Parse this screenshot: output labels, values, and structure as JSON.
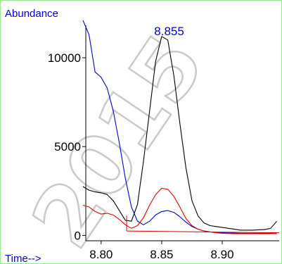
{
  "chart_data": {
    "type": "line",
    "title": "",
    "ylabel": "Abundance",
    "xlabel": "Time-->",
    "xlim": [
      8.785,
      8.947
    ],
    "ylim": [
      -300,
      12300
    ],
    "x_ticks": [
      8.8,
      8.85,
      8.9
    ],
    "x_tick_labels": [
      "8.80",
      "8.85",
      "8.90"
    ],
    "y_ticks": [
      0,
      5000,
      10000
    ],
    "y_tick_labels": [
      "0",
      "5000",
      "10000"
    ],
    "grid": false,
    "peak_annotation": {
      "text": "8.855",
      "x": 8.855
    },
    "watermark_text": "2015",
    "colors": {
      "frame": "#90ee90",
      "axis": "#000000",
      "blue": "#0000cc",
      "red": "#dd0000",
      "black": "#000000",
      "label": "#0000cc",
      "watermark": "#c9c9c9"
    },
    "series": [
      {
        "color": "#000000",
        "x": [
          8.785,
          8.79,
          8.795,
          8.8,
          8.805,
          8.81,
          8.815,
          8.82,
          8.825,
          8.83,
          8.835,
          8.84,
          8.845,
          8.85,
          8.855,
          8.86,
          8.865,
          8.87,
          8.875,
          8.88,
          8.885,
          8.89,
          8.895,
          8.9,
          8.905,
          8.91,
          8.915,
          8.92,
          8.925,
          8.93,
          8.935,
          8.94,
          8.945
        ],
        "y": [
          2750,
          2550,
          2450,
          2400,
          2300,
          1950,
          1400,
          850,
          800,
          1750,
          4200,
          7000,
          9800,
          11200,
          11000,
          9000,
          6300,
          3800,
          1950,
          1100,
          700,
          550,
          500,
          450,
          400,
          350,
          300,
          300,
          300,
          320,
          330,
          400,
          800
        ]
      },
      {
        "color": "#0000cc",
        "x": [
          8.785,
          8.79,
          8.795,
          8.8,
          8.805,
          8.81,
          8.815,
          8.82,
          8.825,
          8.83,
          8.835,
          8.84,
          8.845,
          8.85,
          8.855,
          8.86,
          8.865,
          8.87,
          8.875,
          8.88,
          8.885,
          8.89,
          8.895,
          8.9,
          8.905,
          8.91,
          8.915,
          8.92,
          8.925,
          8.93,
          8.935,
          8.94,
          8.945
        ],
        "y": [
          12100,
          11300,
          9200,
          8900,
          8300,
          7000,
          5200,
          3200,
          1600,
          800,
          600,
          800,
          1150,
          1350,
          1400,
          1300,
          1050,
          750,
          500,
          350,
          250,
          200,
          170,
          150,
          140,
          130,
          120,
          120,
          120,
          120,
          120,
          130,
          150
        ]
      },
      {
        "color": "#dd0000",
        "x": [
          8.785,
          8.79,
          8.795,
          8.8,
          8.805,
          8.81,
          8.815,
          8.82,
          8.825,
          8.83,
          8.835,
          8.84,
          8.845,
          8.85,
          8.855,
          8.86,
          8.865,
          8.87,
          8.875,
          8.88,
          8.885,
          8.89,
          8.895,
          8.9,
          8.905,
          8.91,
          8.915,
          8.92,
          8.925,
          8.93,
          8.935,
          8.94,
          8.945
        ],
        "y": [
          1700,
          1600,
          1350,
          1200,
          1250,
          1150,
          900,
          600,
          400,
          550,
          1000,
          1700,
          2300,
          2650,
          2600,
          2200,
          1600,
          950,
          550,
          350,
          250,
          200,
          150,
          120,
          110,
          100,
          100,
          100,
          100,
          100,
          100,
          100,
          100
        ]
      }
    ],
    "integration_baseline": {
      "color": "#dd0000",
      "x_start": 8.821,
      "x_end": 8.947,
      "y_start": 250,
      "y_end": 150,
      "marker_top": 1100
    }
  }
}
